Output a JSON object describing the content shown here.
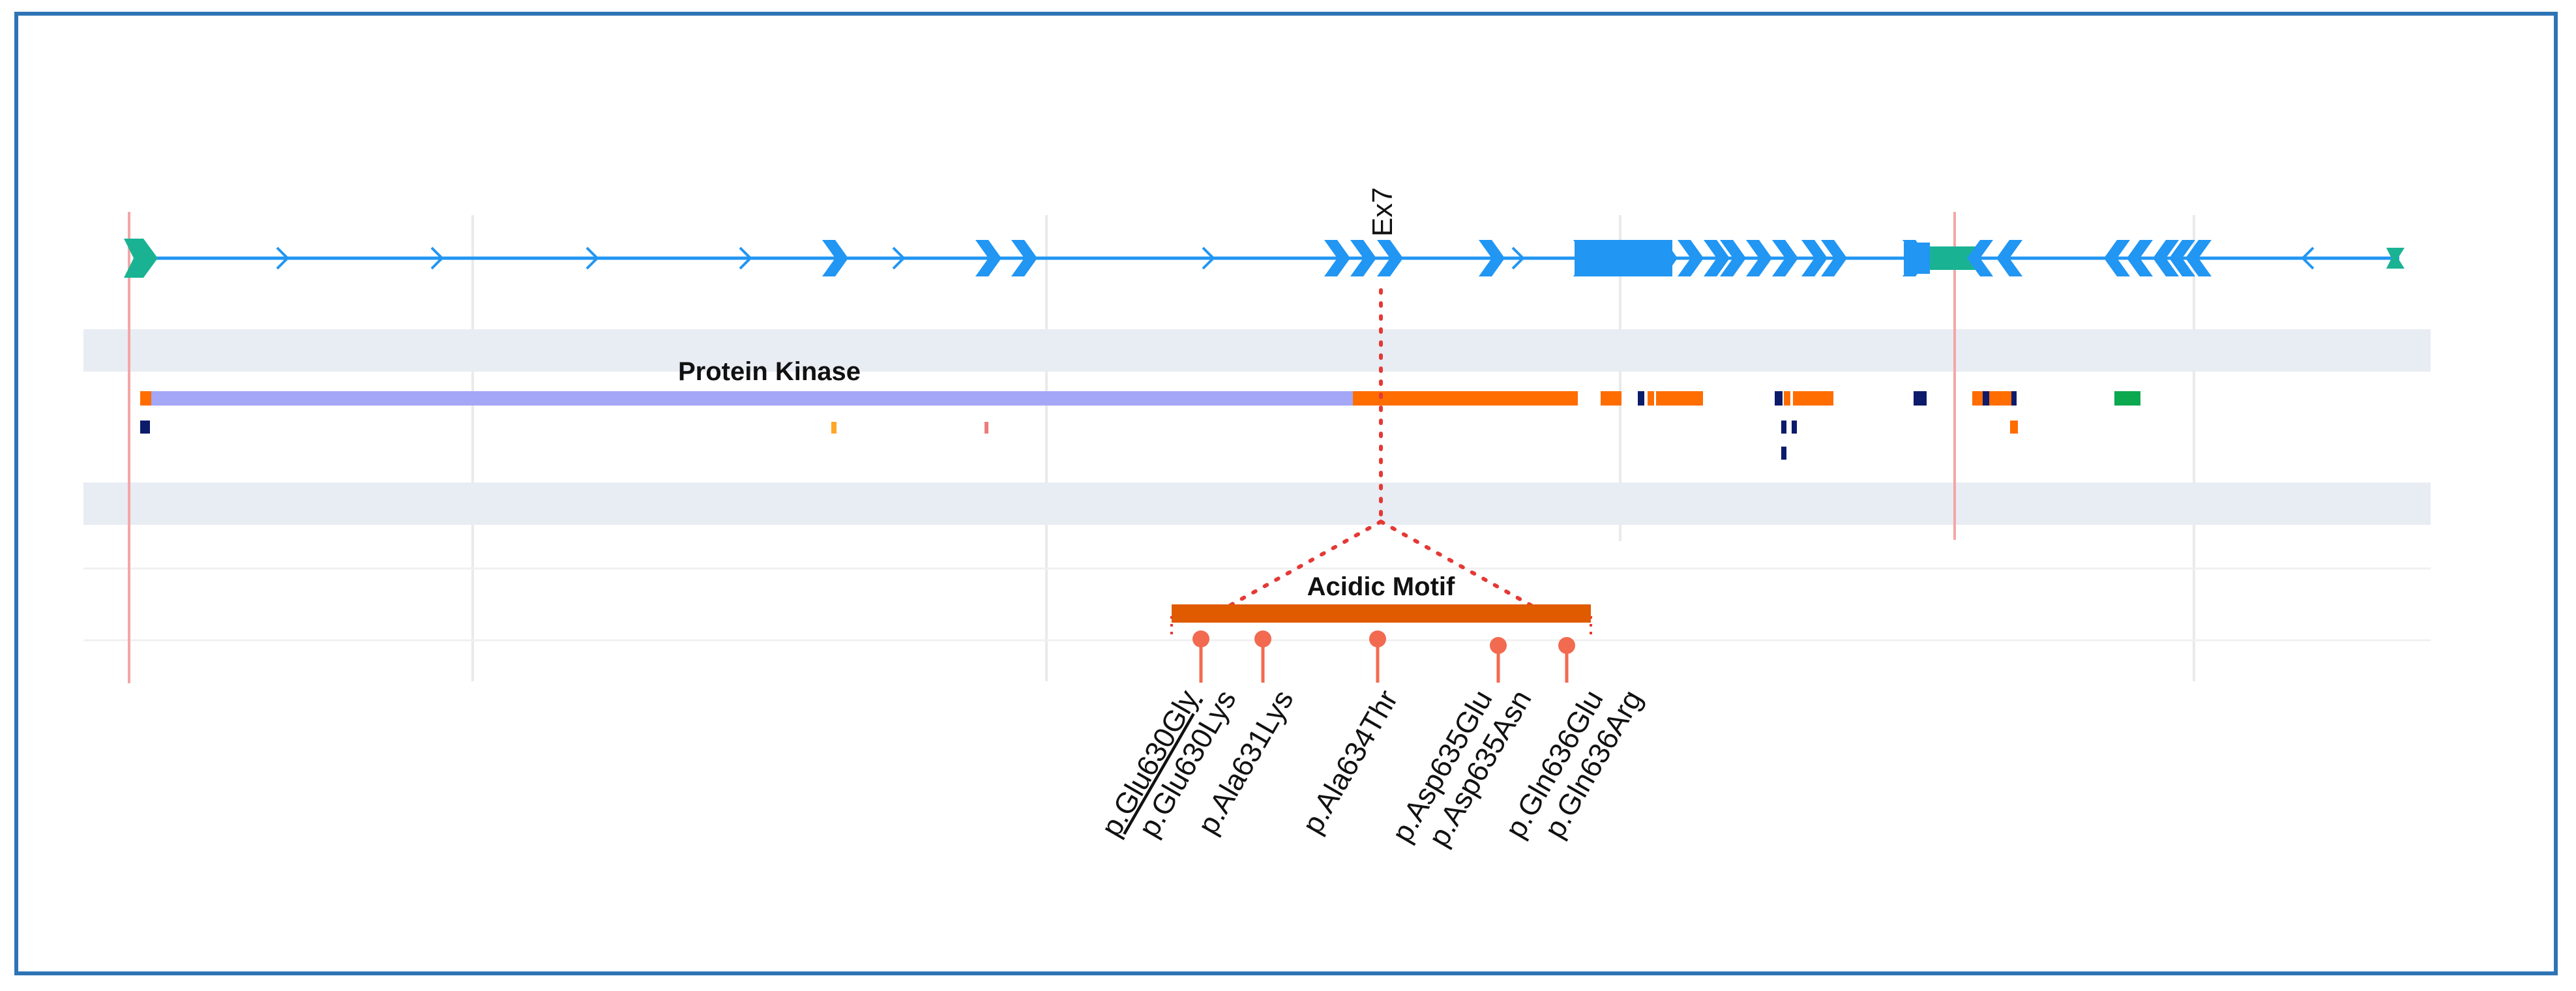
{
  "exon_label": "Ex7",
  "domains": {
    "protein_kinase": "Protein Kinase",
    "acidic_motif": "Acidic Motif"
  },
  "mutations": [
    {
      "label": "p.Glu630Gly",
      "underlined": true
    },
    {
      "label": "p.Glu630Lys",
      "underlined": false
    },
    {
      "label": "p.Ala631Lys",
      "underlined": false
    },
    {
      "label": "p.Ala634Thr",
      "underlined": false
    },
    {
      "label": "p.Asp635Glu",
      "underlined": false
    },
    {
      "label": "p.Asp635Asn",
      "underlined": false
    },
    {
      "label": "p.Gln636Glu",
      "underlined": false
    },
    {
      "label": "p.Gln636Arg",
      "underlined": false
    }
  ],
  "colors": {
    "frame": "#2e74b5",
    "transcript": "#2196f3",
    "utr": "#19b394",
    "kinase": "#a4a6f6",
    "orange_feature": "#ff6d00",
    "acidic_bar": "#e05a00",
    "lollipop": "#f26a4f",
    "connector": "#e53935",
    "navy_feature": "#0d1b6b",
    "green_feature": "#0aa84f",
    "track_band": "#e8ecf3",
    "grid": "#eaeaea",
    "pink_line": "#f4a6a6"
  }
}
